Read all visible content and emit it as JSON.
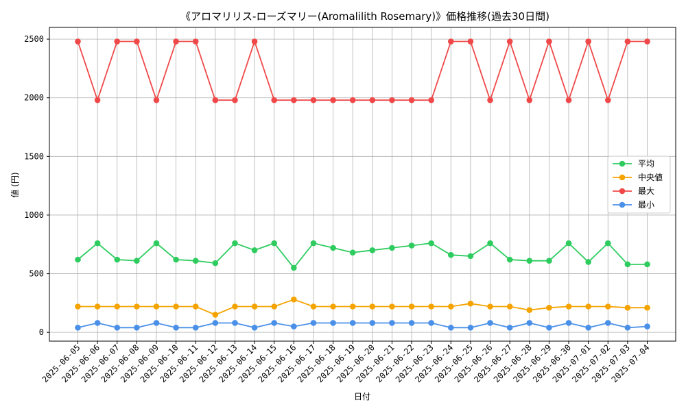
{
  "chart_data": {
    "type": "line",
    "title": "《アロマリリス-ローズマリー(Aromalilith Rosemary)》価格推移(過去30日間)",
    "xlabel": "日付",
    "ylabel": "値 (円)",
    "ylim": [
      -75,
      2600
    ],
    "yticks": [
      "0",
      "500",
      "1000",
      "1500",
      "2000",
      "2500"
    ],
    "grid": true,
    "legend_position": "center-right",
    "categories": [
      "2025-06-05",
      "2025-06-06",
      "2025-06-07",
      "2025-06-08",
      "2025-06-09",
      "2025-06-10",
      "2025-06-11",
      "2025-06-12",
      "2025-06-13",
      "2025-06-14",
      "2025-06-15",
      "2025-06-16",
      "2025-06-17",
      "2025-06-18",
      "2025-06-19",
      "2025-06-20",
      "2025-06-21",
      "2025-06-22",
      "2025-06-23",
      "2025-06-24",
      "2025-06-25",
      "2025-06-26",
      "2025-06-27",
      "2025-06-28",
      "2025-06-29",
      "2025-06-30",
      "2025-07-01",
      "2025-07-02",
      "2025-07-03",
      "2025-07-04"
    ],
    "series": [
      {
        "name": "平均",
        "color": "#2ecc5f",
        "values": [
          620,
          760,
          620,
          610,
          760,
          620,
          610,
          590,
          760,
          700,
          760,
          550,
          760,
          720,
          680,
          700,
          720,
          740,
          760,
          660,
          650,
          760,
          620,
          610,
          610,
          760,
          600,
          760,
          580,
          580
        ]
      },
      {
        "name": "中央値",
        "color": "#f5a300",
        "values": [
          220,
          220,
          220,
          220,
          220,
          220,
          220,
          150,
          220,
          220,
          220,
          280,
          220,
          220,
          220,
          220,
          220,
          220,
          220,
          220,
          245,
          220,
          220,
          190,
          210,
          220,
          220,
          220,
          210,
          210
        ]
      },
      {
        "name": "最大",
        "color": "#f04848",
        "values": [
          2480,
          1980,
          2480,
          2480,
          1980,
          2480,
          2480,
          1980,
          1980,
          2480,
          1980,
          1980,
          1980,
          1980,
          1980,
          1980,
          1980,
          1980,
          1980,
          2480,
          2480,
          1980,
          2480,
          1980,
          2480,
          1980,
          2480,
          1980,
          2480,
          2480
        ]
      },
      {
        "name": "最小",
        "color": "#4a90e8",
        "values": [
          40,
          80,
          40,
          40,
          80,
          40,
          40,
          80,
          80,
          40,
          80,
          50,
          80,
          80,
          80,
          80,
          80,
          80,
          80,
          40,
          40,
          80,
          40,
          80,
          40,
          80,
          40,
          80,
          40,
          50
        ]
      }
    ]
  }
}
